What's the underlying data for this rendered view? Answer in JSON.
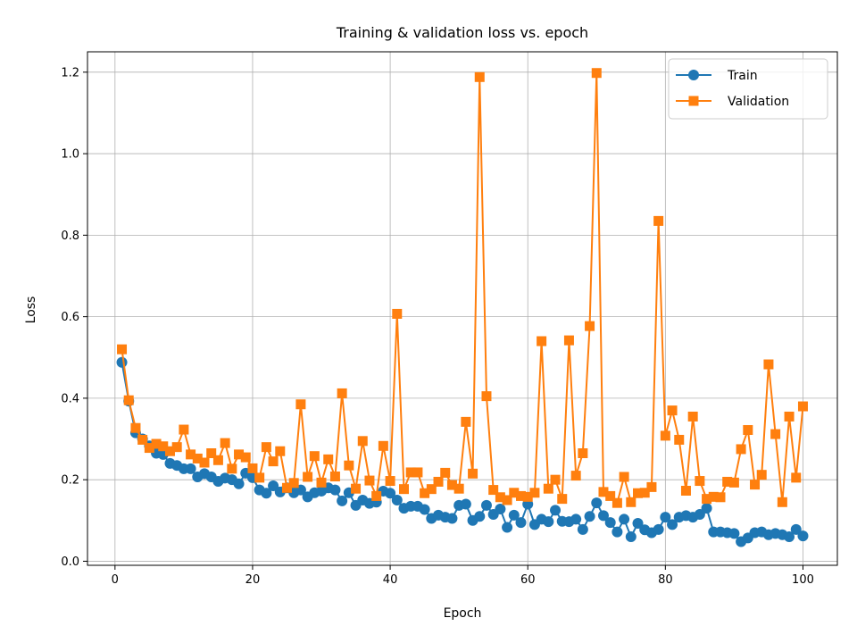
{
  "chart_data": {
    "type": "line",
    "title": "Training & validation loss vs. epoch",
    "xlabel": "Epoch",
    "ylabel": "Loss",
    "xlim": [
      -4,
      105
    ],
    "ylim": [
      -0.01,
      1.25
    ],
    "xticks": [
      0,
      20,
      40,
      60,
      80,
      100
    ],
    "yticks": [
      0.0,
      0.2,
      0.4,
      0.6,
      0.8,
      1.0,
      1.2
    ],
    "grid": true,
    "legend_position": "top-right",
    "x": [
      1,
      2,
      3,
      4,
      5,
      6,
      7,
      8,
      9,
      10,
      11,
      12,
      13,
      14,
      15,
      16,
      17,
      18,
      19,
      20,
      21,
      22,
      23,
      24,
      25,
      26,
      27,
      28,
      29,
      30,
      31,
      32,
      33,
      34,
      35,
      36,
      37,
      38,
      39,
      40,
      41,
      42,
      43,
      44,
      45,
      46,
      47,
      48,
      49,
      50,
      51,
      52,
      53,
      54,
      55,
      56,
      57,
      58,
      59,
      60,
      61,
      62,
      63,
      64,
      65,
      66,
      67,
      68,
      69,
      70,
      71,
      72,
      73,
      74,
      75,
      76,
      77,
      78,
      79,
      80,
      81,
      82,
      83,
      84,
      85,
      86,
      87,
      88,
      89,
      90,
      91,
      92,
      93,
      94,
      95,
      96,
      97,
      98,
      99,
      100
    ],
    "series": [
      {
        "name": "Train",
        "color": "#1f77b4",
        "marker": "circle",
        "values": [
          0.488,
          0.393,
          0.315,
          0.3,
          0.283,
          0.265,
          0.262,
          0.24,
          0.235,
          0.227,
          0.227,
          0.207,
          0.215,
          0.207,
          0.196,
          0.204,
          0.2,
          0.19,
          0.216,
          0.205,
          0.175,
          0.167,
          0.185,
          0.17,
          0.18,
          0.168,
          0.175,
          0.158,
          0.168,
          0.172,
          0.18,
          0.175,
          0.148,
          0.168,
          0.137,
          0.15,
          0.142,
          0.145,
          0.172,
          0.167,
          0.15,
          0.13,
          0.135,
          0.135,
          0.127,
          0.105,
          0.113,
          0.108,
          0.105,
          0.137,
          0.14,
          0.1,
          0.11,
          0.137,
          0.115,
          0.128,
          0.083,
          0.113,
          0.095,
          0.14,
          0.09,
          0.103,
          0.097,
          0.125,
          0.098,
          0.097,
          0.103,
          0.078,
          0.11,
          0.143,
          0.112,
          0.095,
          0.072,
          0.103,
          0.06,
          0.093,
          0.077,
          0.07,
          0.078,
          0.108,
          0.09,
          0.108,
          0.112,
          0.108,
          0.115,
          0.13,
          0.072,
          0.072,
          0.07,
          0.068,
          0.048,
          0.057,
          0.07,
          0.072,
          0.065,
          0.068,
          0.065,
          0.06,
          0.078,
          0.062
        ]
      },
      {
        "name": "Validation",
        "color": "#ff7f0e",
        "marker": "square",
        "values": [
          0.52,
          0.395,
          0.327,
          0.298,
          0.278,
          0.288,
          0.282,
          0.27,
          0.28,
          0.323,
          0.262,
          0.252,
          0.242,
          0.265,
          0.248,
          0.29,
          0.227,
          0.262,
          0.255,
          0.228,
          0.205,
          0.28,
          0.245,
          0.27,
          0.18,
          0.192,
          0.385,
          0.207,
          0.258,
          0.193,
          0.25,
          0.208,
          0.412,
          0.235,
          0.178,
          0.295,
          0.198,
          0.16,
          0.283,
          0.197,
          0.607,
          0.177,
          0.218,
          0.218,
          0.167,
          0.177,
          0.195,
          0.217,
          0.187,
          0.178,
          0.342,
          0.215,
          1.188,
          0.405,
          0.175,
          0.157,
          0.15,
          0.168,
          0.16,
          0.158,
          0.168,
          0.54,
          0.178,
          0.2,
          0.153,
          0.542,
          0.21,
          0.265,
          0.577,
          1.198,
          0.17,
          0.16,
          0.143,
          0.207,
          0.145,
          0.167,
          0.168,
          0.182,
          0.835,
          0.308,
          0.37,
          0.298,
          0.173,
          0.355,
          0.197,
          0.153,
          0.158,
          0.157,
          0.195,
          0.193,
          0.275,
          0.322,
          0.188,
          0.212,
          0.483,
          0.312,
          0.145,
          0.355,
          0.205,
          0.38
        ]
      }
    ]
  }
}
